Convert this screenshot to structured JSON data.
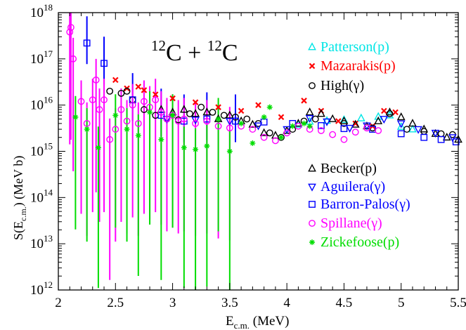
{
  "chart_data": {
    "type": "scatter",
    "title_parts": {
      "m1": "12",
      "e1": "C + ",
      "m2": "12",
      "e2": "C"
    },
    "xlabel": {
      "main": "E",
      "sub": "c.m.",
      "unit": " (MeV)"
    },
    "ylabel": {
      "main": "S(E",
      "sub": "c.m.",
      "unit": ") (MeV b)"
    },
    "xlim": [
      2,
      5.5
    ],
    "ylim_log10": [
      12,
      18
    ],
    "yscale": "log",
    "x_ticks": [
      "2",
      "2.5",
      "3",
      "3.5",
      "4",
      "4.5",
      "5",
      "5.5"
    ],
    "x_tick_values": [
      2,
      2.5,
      3,
      3.5,
      4,
      4.5,
      5,
      5.5
    ],
    "y_tick_mantissa": "10",
    "y_tick_exponents": [
      "12",
      "13",
      "14",
      "15",
      "16",
      "17",
      "18"
    ],
    "grid": false,
    "legend_placement": "right",
    "series": [
      {
        "name": "Patterson(p)",
        "marker": "triangle",
        "color": "#00e5e5",
        "points": [
          [
            4.1,
            3800000000000000.0
          ],
          [
            4.2,
            4400000000000000.0
          ],
          [
            4.35,
            4600000000000000.0
          ],
          [
            4.5,
            4800000000000000.0
          ],
          [
            4.65,
            5200000000000000.0
          ],
          [
            4.8,
            5600000000000000.0
          ],
          [
            4.9,
            6000000000000000.0
          ],
          [
            5.0,
            3400000000000000.0
          ],
          [
            5.1,
            3000000000000000.0
          ]
        ]
      },
      {
        "name": "Mazarakis(p)",
        "marker": "x",
        "color": "#ff0000",
        "points": [
          [
            2.5,
            3.5e+16
          ],
          [
            2.6,
            2.3e+16
          ],
          [
            2.7,
            2.5e+16
          ],
          [
            2.75,
            2.1e+16
          ],
          [
            2.85,
            1.7e+16
          ],
          [
            3.0,
            1.4e+16
          ],
          [
            3.2,
            1.15e+16
          ],
          [
            3.4,
            9000000000000000.0
          ],
          [
            3.6,
            7500000000000000.0
          ],
          [
            3.75,
            1e+16
          ],
          [
            3.95,
            5500000000000000.0
          ],
          [
            4.15,
            1.25e+16
          ],
          [
            4.3,
            7500000000000000.0
          ],
          [
            4.45,
            4500000000000000.0
          ],
          [
            4.6,
            4000000000000000.0
          ],
          [
            4.75,
            3500000000000000.0
          ],
          [
            4.85,
            7500000000000000.0
          ],
          [
            4.95,
            7000000000000000.0
          ]
        ]
      },
      {
        "name": "High(γ)",
        "marker": "circle",
        "color": "#000000",
        "points": [
          [
            2.45,
            2e+16
          ],
          [
            2.55,
            1.8e+16
          ],
          [
            2.6,
            2e+16
          ],
          [
            2.65,
            1.3e+16
          ],
          [
            2.75,
            8000000000000000.0
          ],
          [
            2.85,
            6000000000000000.0
          ],
          [
            2.95,
            5000000000000000.0
          ],
          [
            3.05,
            4800000000000000.0
          ],
          [
            3.15,
            6500000000000000.0
          ],
          [
            3.25,
            9000000000000000.0
          ],
          [
            3.35,
            7000000000000000.0
          ],
          [
            3.45,
            6000000000000000.0
          ],
          [
            3.55,
            5500000000000000.0
          ],
          [
            3.65,
            5000000000000000.0
          ],
          [
            3.75,
            4000000000000000.0
          ],
          [
            3.85,
            2500000000000000.0
          ],
          [
            3.95,
            2000000000000000.0
          ],
          [
            4.05,
            3000000000000000.0
          ],
          [
            4.15,
            4500000000000000.0
          ],
          [
            4.25,
            5000000000000000.0
          ],
          [
            4.5,
            4000000000000000.0
          ],
          [
            4.75,
            3200000000000000.0
          ],
          [
            4.9,
            6500000000000000.0
          ],
          [
            5.05,
            3000000000000000.0
          ],
          [
            5.2,
            2700000000000000.0
          ],
          [
            5.35,
            2400000000000000.0
          ],
          [
            5.45,
            2300000000000000.0
          ]
        ]
      },
      {
        "name": "Becker(p)",
        "marker": "triangle",
        "color": "#000000",
        "points": [
          [
            2.9,
            8000000000000000.0
          ],
          [
            3.0,
            7000000000000000.0
          ],
          [
            3.1,
            8000000000000000.0
          ],
          [
            3.2,
            6500000000000000.0
          ],
          [
            3.3,
            7000000000000000.0
          ],
          [
            3.4,
            5000000000000000.0
          ],
          [
            3.5,
            6000000000000000.0
          ],
          [
            3.6,
            4500000000000000.0
          ],
          [
            3.7,
            3800000000000000.0
          ],
          [
            3.8,
            2500000000000000.0
          ],
          [
            3.9,
            2200000000000000.0
          ],
          [
            4.0,
            2800000000000000.0
          ],
          [
            4.1,
            4000000000000000.0
          ],
          [
            4.2,
            7000000000000000.0
          ],
          [
            4.3,
            6500000000000000.0
          ],
          [
            4.4,
            5000000000000000.0
          ],
          [
            4.5,
            4500000000000000.0
          ],
          [
            4.6,
            3800000000000000.0
          ],
          [
            4.7,
            3500000000000000.0
          ],
          [
            4.8,
            4500000000000000.0
          ],
          [
            4.9,
            7000000000000000.0
          ],
          [
            5.0,
            5500000000000000.0
          ],
          [
            5.1,
            4000000000000000.0
          ],
          [
            5.2,
            3000000000000000.0
          ],
          [
            5.3,
            2400000000000000.0
          ],
          [
            5.4,
            2000000000000000.0
          ],
          [
            5.5,
            1800000000000000.0
          ]
        ]
      },
      {
        "name": "Aguilera(γ)",
        "marker": "triangle-down",
        "color": "#0000ff",
        "points": [
          [
            2.95,
            5000000000000000.0
          ],
          [
            3.2,
            4800000000000000.0
          ],
          [
            3.5,
            4500000000000000.0
          ],
          [
            3.75,
            3600000000000000.0
          ],
          [
            4.0,
            3000000000000000.0
          ],
          [
            4.2,
            5200000000000000.0
          ],
          [
            4.35,
            4400000000000000.0
          ],
          [
            4.55,
            3200000000000000.0
          ],
          [
            4.7,
            3600000000000000.0
          ],
          [
            4.85,
            5000000000000000.0
          ],
          [
            5.0,
            4000000000000000.0
          ],
          [
            5.15,
            3000000000000000.0
          ],
          [
            5.3,
            2500000000000000.0
          ],
          [
            5.45,
            2000000000000000.0
          ]
        ]
      },
      {
        "name": "Barron-Palos(γ)",
        "marker": "square",
        "color": "#0000ff",
        "points": [
          [
            2.25,
            2.2e+17
          ],
          [
            2.4,
            8e+16
          ],
          [
            2.65,
            1.3e+16
          ],
          [
            2.9,
            6000000000000000.0
          ],
          [
            3.1,
            4500000000000000.0
          ],
          [
            3.3,
            5000000000000000.0
          ],
          [
            3.55,
            4500000000000000.0
          ],
          [
            3.8,
            4300000000000000.0
          ],
          [
            4.05,
            4000000000000000.0
          ],
          [
            4.3,
            3600000000000000.0
          ],
          [
            4.5,
            3100000000000000.0
          ],
          [
            4.75,
            3000000000000000.0
          ],
          [
            5.0,
            2400000000000000.0
          ],
          [
            5.2,
            2000000000000000.0
          ],
          [
            5.35,
            1800000000000000.0
          ],
          [
            5.48,
            1600000000000000.0
          ]
        ]
      },
      {
        "name": "Spillane(γ)",
        "marker": "circle",
        "color": "#ff00ff",
        "points": [
          [
            2.1,
            3.8e+17
          ],
          [
            2.11,
            4.8e+17
          ],
          [
            2.13,
            1e+17
          ],
          [
            2.2,
            1.2e+16
          ],
          [
            2.25,
            4000000000000000.0
          ],
          [
            2.3,
            1.3e+16
          ],
          [
            2.33,
            3.5e+16
          ],
          [
            2.36,
            8000000000000000.0
          ],
          [
            2.4,
            1.3e+16
          ],
          [
            2.45,
            1800000000000000.0
          ],
          [
            2.5,
            3000000000000000.0
          ],
          [
            2.55,
            8000000000000000.0
          ],
          [
            2.6,
            4500000000000000.0
          ],
          [
            2.65,
            1e+16
          ],
          [
            2.7,
            4000000000000000.0
          ],
          [
            2.75,
            1.2e+16
          ],
          [
            2.8,
            9000000000000000.0
          ],
          [
            2.85,
            1.3e+16
          ],
          [
            2.9,
            7000000000000000.0
          ],
          [
            2.95,
            5000000000000000.0
          ],
          [
            3.0,
            6000000000000000.0
          ],
          [
            3.05,
            4500000000000000.0
          ],
          [
            3.1,
            5000000000000000.0
          ],
          [
            3.2,
            4000000000000000.0
          ],
          [
            3.3,
            4500000000000000.0
          ],
          [
            3.4,
            3500000000000000.0
          ],
          [
            3.5,
            3200000000000000.0
          ],
          [
            3.6,
            3500000000000000.0
          ],
          [
            3.7,
            3000000000000000.0
          ],
          [
            3.8,
            2000000000000000.0
          ],
          [
            3.9,
            1700000000000000.0
          ],
          [
            4.0,
            2500000000000000.0
          ],
          [
            4.1,
            3500000000000000.0
          ],
          [
            4.2,
            3000000000000000.0
          ],
          [
            4.3,
            2800000000000000.0
          ],
          [
            4.4,
            2300000000000000.0
          ],
          [
            4.5,
            1800000000000000.0
          ],
          [
            4.6,
            2600000000000000.0
          ],
          [
            4.7,
            3200000000000000.0
          ],
          [
            4.8,
            2800000000000000.0
          ]
        ]
      },
      {
        "name": "Zickefoose(p)",
        "marker": "asterisk",
        "color": "#00dd00",
        "points": [
          [
            2.15,
            5500000000000000.0
          ],
          [
            2.25,
            3000000000000000.0
          ],
          [
            2.35,
            1200000000000000.0
          ],
          [
            2.5,
            6000000000000000.0
          ],
          [
            2.6,
            3000000000000000.0
          ],
          [
            2.7,
            2200000000000000.0
          ],
          [
            2.8,
            7000000000000000.0
          ],
          [
            2.9,
            1800000000000000.0
          ],
          [
            3.0,
            6000000000000000.0
          ],
          [
            3.1,
            1200000000000000.0
          ],
          [
            3.2,
            1100000000000000.0
          ],
          [
            3.3,
            1300000000000000.0
          ],
          [
            3.4,
            5000000000000000.0
          ],
          [
            3.5,
            1000000000000000.0
          ],
          [
            3.6,
            4000000000000000.0
          ],
          [
            3.7,
            1500000000000000.0
          ],
          [
            3.8,
            5500000000000000.0
          ],
          [
            3.85,
            9000000000000000.0
          ],
          [
            3.95,
            2000000000000000.0
          ],
          [
            4.05,
            3500000000000000.0
          ],
          [
            4.15,
            4000000000000000.0
          ],
          [
            4.2,
            3500000000000000.0
          ]
        ]
      }
    ]
  }
}
